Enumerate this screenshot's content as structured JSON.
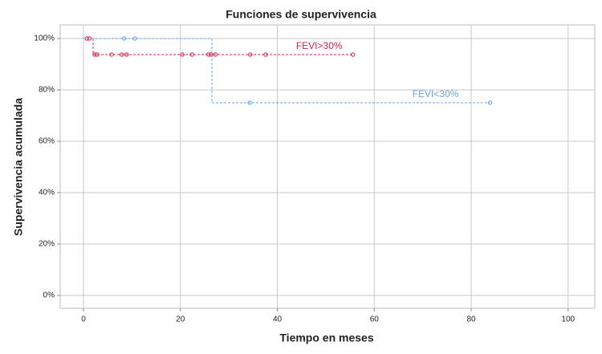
{
  "chart_data": {
    "type": "survival",
    "title": "Funciones de supervivencia",
    "x_label": "Tiempo en meses",
    "y_label": "Supervivencia acumulada",
    "xlim": [
      -4.8,
      105.5
    ],
    "ylim": [
      -5,
      105.3
    ],
    "xticks": [
      0,
      20,
      40,
      60,
      80,
      100
    ],
    "yticks": [
      {
        "value": 0,
        "label": "0%"
      },
      {
        "value": 20,
        "label": "20%"
      },
      {
        "value": 40,
        "label": "40%"
      },
      {
        "value": 60,
        "label": "60%"
      },
      {
        "value": 80,
        "label": "80%"
      },
      {
        "value": 100,
        "label": "100%"
      }
    ],
    "grid": true,
    "series": [
      {
        "name": "FEVI>30%",
        "color": "#d6234a",
        "x": [
          0,
          2.0,
          55.6
        ],
        "values": [
          100,
          93.75,
          93.75
        ],
        "censored_x": [
          0.7,
          1.2,
          2.3,
          2.8,
          5.8,
          7.9,
          8.9,
          20.4,
          22.4,
          25.8,
          26.3,
          27.2,
          34.4,
          37.6,
          55.6
        ],
        "censored_values": [
          100,
          100,
          93.75,
          93.75,
          93.75,
          93.75,
          93.75,
          93.75,
          93.75,
          93.75,
          93.75,
          93.75,
          93.75,
          93.75,
          93.75
        ]
      },
      {
        "name": "FEVI<30%",
        "color": "#6aa3dc",
        "x": [
          0,
          26.5,
          83.9
        ],
        "values": [
          100,
          75,
          75
        ],
        "censored_x": [
          8.4,
          10.6,
          34.3,
          83.9
        ],
        "censored_values": [
          100,
          100,
          75,
          75
        ]
      }
    ]
  }
}
